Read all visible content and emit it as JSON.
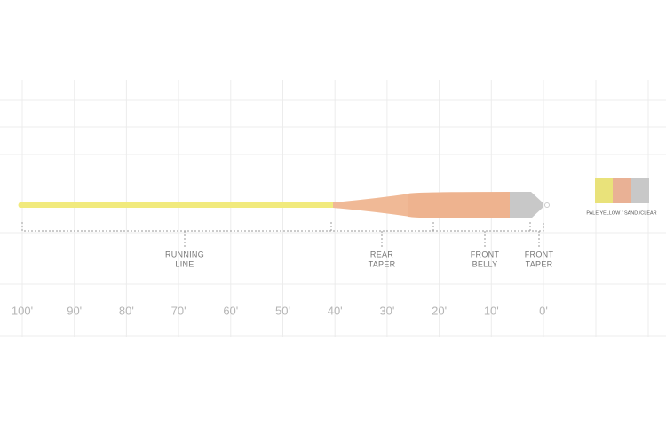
{
  "scale": [
    "100'",
    "90'",
    "80'",
    "70'",
    "60'",
    "50'",
    "40'",
    "30'",
    "20'",
    "10'",
    "0'"
  ],
  "sections": [
    {
      "lines": [
        "RUNNING",
        "LINE"
      ]
    },
    {
      "lines": [
        "REAR",
        "TAPER"
      ]
    },
    {
      "lines": [
        "FRONT",
        "BELLY"
      ]
    },
    {
      "lines": [
        "FRONT",
        "TAPER"
      ]
    }
  ],
  "color_label": "PALE YELLOW / SAND /CLEAR"
}
